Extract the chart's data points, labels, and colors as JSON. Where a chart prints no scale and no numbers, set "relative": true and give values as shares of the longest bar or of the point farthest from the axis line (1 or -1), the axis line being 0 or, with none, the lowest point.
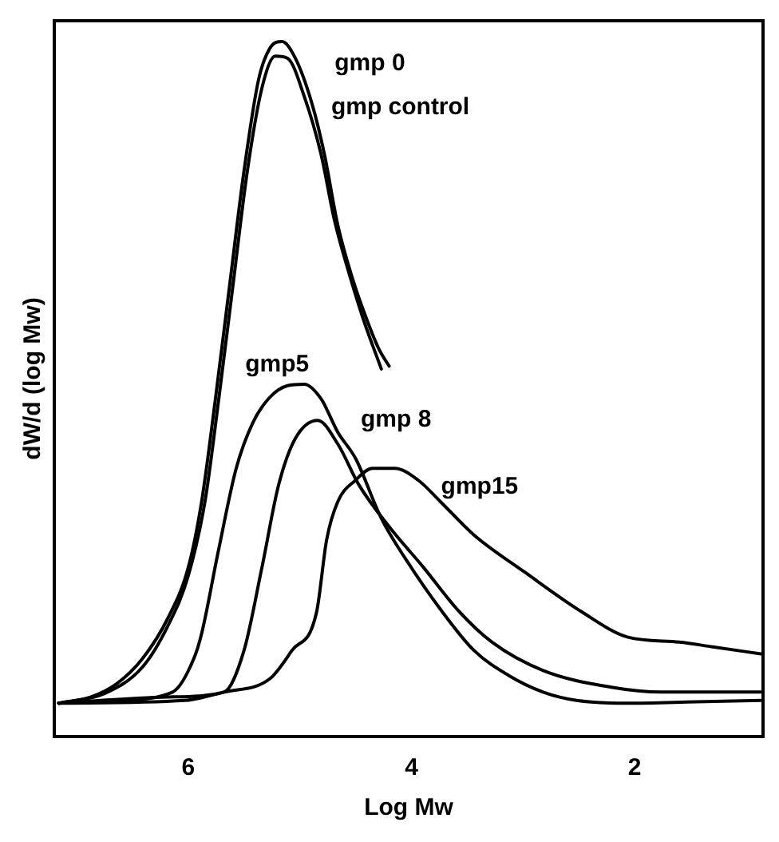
{
  "chart_data": {
    "type": "line",
    "xlabel": "Log Mw",
    "ylabel": "dW/d (log Mw)",
    "relative": true,
    "xlim": [
      7.2,
      0.85
    ],
    "xticks": [
      6,
      4,
      2
    ],
    "grid": false,
    "legend": false,
    "marker": "none",
    "line_style": "solid",
    "series": [
      {
        "name": "gmp 0",
        "color": "#000000",
        "x": [
          7.16,
          6.87,
          6.64,
          6.41,
          6.18,
          6.0,
          5.88,
          5.76,
          5.63,
          5.5,
          5.37,
          5.27,
          5.16,
          5.04,
          4.89,
          4.78,
          4.66,
          4.53,
          4.4,
          4.29,
          4.2
        ],
        "values": [
          0.048,
          0.057,
          0.076,
          0.112,
          0.171,
          0.243,
          0.338,
          0.481,
          0.648,
          0.814,
          0.945,
          0.99,
          1.0,
          0.976,
          0.91,
          0.838,
          0.736,
          0.66,
          0.6,
          0.557,
          0.533
        ]
      },
      {
        "name": "gmp control",
        "color": "#000000",
        "x": [
          7.16,
          6.75,
          6.41,
          6.18,
          6.0,
          5.85,
          5.73,
          5.6,
          5.47,
          5.34,
          5.22,
          5.11,
          4.96,
          4.81,
          4.69,
          4.56,
          4.43,
          4.27
        ],
        "values": [
          0.048,
          0.062,
          0.1,
          0.16,
          0.231,
          0.338,
          0.481,
          0.648,
          0.814,
          0.933,
          0.979,
          0.976,
          0.921,
          0.838,
          0.743,
          0.667,
          0.6,
          0.529
        ]
      },
      {
        "name": "gmp5",
        "color": "#000000",
        "x": [
          7.16,
          6.64,
          6.14,
          5.95,
          5.88,
          5.73,
          5.57,
          5.42,
          5.27,
          5.11,
          4.96,
          4.81,
          4.66,
          4.5,
          4.27,
          4.05,
          3.74,
          3.44,
          3.13,
          2.82,
          2.52,
          2.06,
          1.45,
          0.87
        ],
        "values": [
          0.048,
          0.052,
          0.064,
          0.112,
          0.148,
          0.267,
          0.386,
          0.452,
          0.488,
          0.505,
          0.507,
          0.486,
          0.438,
          0.4,
          0.314,
          0.255,
          0.183,
          0.124,
          0.088,
          0.064,
          0.052,
          0.048,
          0.05,
          0.052
        ]
      },
      {
        "name": "gmp 8",
        "color": "#000000",
        "x": [
          7.16,
          6.18,
          5.68,
          5.5,
          5.34,
          5.19,
          5.04,
          4.84,
          4.66,
          4.47,
          4.2,
          3.89,
          3.59,
          3.28,
          2.82,
          2.21,
          1.76,
          0.87
        ],
        "values": [
          0.048,
          0.057,
          0.064,
          0.124,
          0.243,
          0.362,
          0.429,
          0.455,
          0.421,
          0.362,
          0.302,
          0.243,
          0.183,
          0.136,
          0.095,
          0.071,
          0.064,
          0.064
        ]
      },
      {
        "name": "gmp15",
        "color": "#000000",
        "x": [
          7.16,
          6.03,
          5.68,
          5.27,
          5.07,
          4.85,
          4.76,
          4.66,
          4.5,
          4.35,
          4.15,
          3.94,
          3.74,
          3.44,
          2.98,
          2.47,
          2.06,
          1.6,
          1.3,
          0.87
        ],
        "values": [
          0.048,
          0.052,
          0.064,
          0.083,
          0.124,
          0.179,
          0.283,
          0.338,
          0.369,
          0.386,
          0.386,
          0.369,
          0.338,
          0.29,
          0.236,
          0.179,
          0.143,
          0.136,
          0.129,
          0.119
        ]
      }
    ]
  }
}
